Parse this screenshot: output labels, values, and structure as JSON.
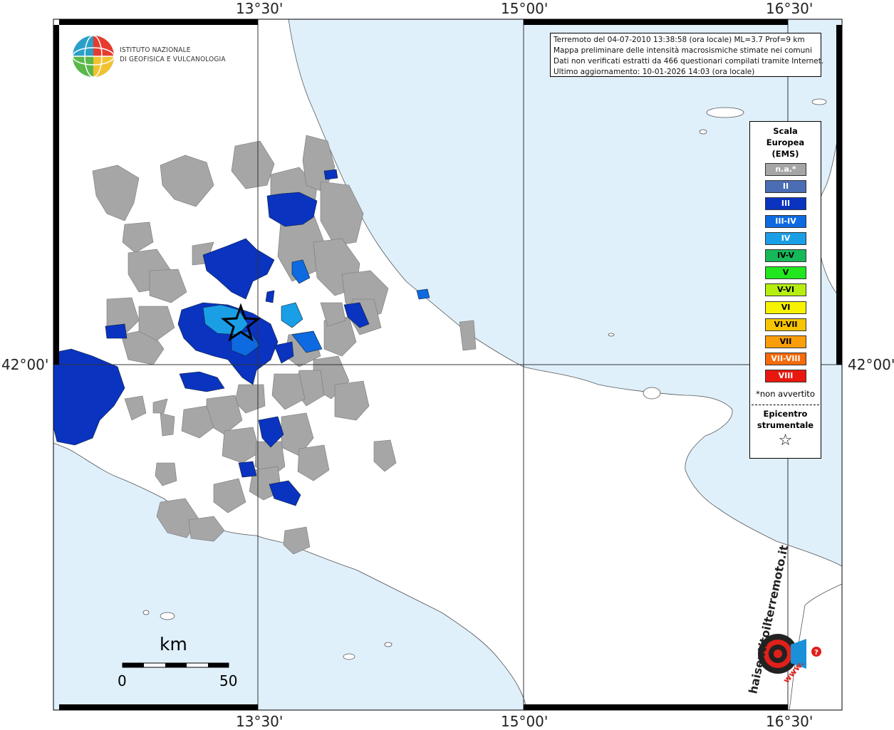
{
  "axes": {
    "top_labels": [
      "13°30'",
      "15°00'",
      "16°30'"
    ],
    "bottom_labels": [
      "13°30'",
      "15°00'",
      "16°30'"
    ],
    "left_label": "42°00'",
    "right_label": "42°00'"
  },
  "institute": {
    "line1": "ISTITUTO NAZIONALE",
    "line2": "DI GEOFISICA E VULCANOLOGIA"
  },
  "info": {
    "line1": "Terremoto del 04-07-2010 13:38:58 (ora locale) ML=3.7 Prof=9 km",
    "line2": "Mappa preliminare delle intensità macrosismiche stimate nei comuni",
    "line3": "Dati non verificati estratti da 466 questionari compilati tramite Internet.",
    "line4": "Ultimo aggiornamento: 10-01-2026 14:03 (ora locale)"
  },
  "legend": {
    "title1": "Scala",
    "title2": "Europea",
    "title3": "(EMS)",
    "items": [
      {
        "label": "n.a.*",
        "color": "#a6a6a6",
        "text_color": "#ffffff"
      },
      {
        "label": "II",
        "color": "#4b6db4",
        "text_color": "#ffffff"
      },
      {
        "label": "III",
        "color": "#0a33c0",
        "text_color": "#ffffff"
      },
      {
        "label": "III-IV",
        "color": "#0d6ae0",
        "text_color": "#ffffff"
      },
      {
        "label": "IV",
        "color": "#1a9ee6",
        "text_color": "#ffffff"
      },
      {
        "label": "IV-V",
        "color": "#17b85a",
        "text_color": "#000000"
      },
      {
        "label": "V",
        "color": "#22e61e",
        "text_color": "#000000"
      },
      {
        "label": "V-VI",
        "color": "#b6ee10",
        "text_color": "#000000"
      },
      {
        "label": "VI",
        "color": "#f6f200",
        "text_color": "#000000"
      },
      {
        "label": "VI-VII",
        "color": "#f6c400",
        "text_color": "#000000"
      },
      {
        "label": "VII",
        "color": "#f99e0a",
        "text_color": "#000000"
      },
      {
        "label": "VII-VIII",
        "color": "#f56a0a",
        "text_color": "#ffffff"
      },
      {
        "label": "VIII",
        "color": "#e8180f",
        "text_color": "#ffffff"
      }
    ],
    "note": "*non avvertito",
    "epicenter1": "Epicentro",
    "epicenter2": "strumentale",
    "epicenter_symbol": "☆"
  },
  "scalebar": {
    "unit": "km",
    "min": "0",
    "max": "50"
  },
  "badge": {
    "text": "haisentitoilterremoto.it",
    "url": "www."
  },
  "colors": {
    "sea": "#dff0fb",
    "land": "#ffffff",
    "na": "#a6a6a6",
    "III": "#0a33c0",
    "IV": "#1a9ee6"
  }
}
